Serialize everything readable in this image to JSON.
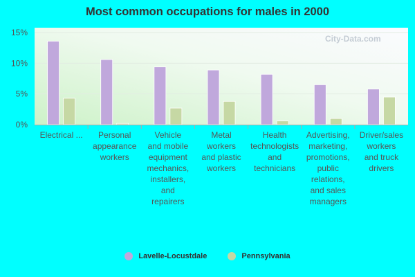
{
  "chart_data": {
    "type": "bar",
    "title": "Most common occupations for males in 2000",
    "categories": [
      [
        "Electrical ..."
      ],
      [
        "Personal",
        "appearance",
        "workers"
      ],
      [
        "Vehicle",
        "and mobile",
        "equipment",
        "mechanics,",
        "installers,",
        "and",
        "repairers"
      ],
      [
        "Metal",
        "workers",
        "and plastic",
        "workers"
      ],
      [
        "Health",
        "technologists",
        "and",
        "technicians"
      ],
      [
        "Advertising,",
        "marketing,",
        "promotions,",
        "public",
        "relations,",
        "and sales",
        "managers"
      ],
      [
        "Driver/sales",
        "workers",
        "and truck",
        "drivers"
      ]
    ],
    "series": [
      {
        "name": "Lavelle-Locustdale",
        "color": "#c0a8dc",
        "values": [
          13.6,
          10.6,
          9.4,
          8.9,
          8.2,
          6.5,
          5.8
        ]
      },
      {
        "name": "Pennsylvania",
        "color": "#c6d8a4",
        "values": [
          4.3,
          0.2,
          2.7,
          3.8,
          0.6,
          1.0,
          4.5
        ]
      }
    ],
    "yticks": [
      "0%",
      "5%",
      "10%",
      "15%"
    ],
    "ylim": [
      0,
      15
    ],
    "xlabel": "",
    "ylabel": "",
    "grid": true,
    "legend_position": "bottom",
    "watermark": "City-Data.com"
  }
}
